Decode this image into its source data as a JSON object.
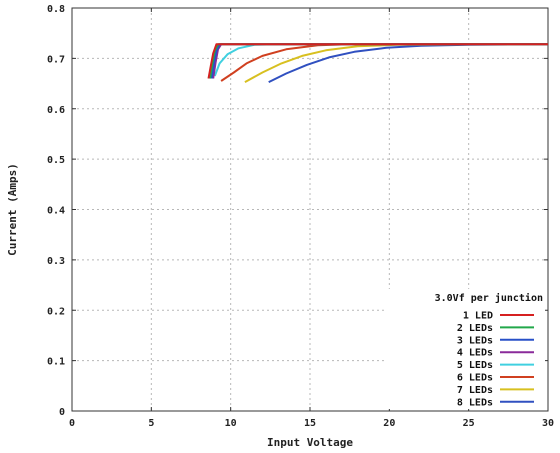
{
  "chart_data": {
    "type": "line",
    "title": "",
    "xlabel": "Input Voltage",
    "ylabel": "Current (Amps)",
    "xlim": [
      0,
      30
    ],
    "ylim": [
      0,
      0.8
    ],
    "x_ticks": [
      "0",
      "5",
      "10",
      "15",
      "20",
      "25",
      "30"
    ],
    "y_ticks": [
      "0",
      "0.1",
      "0.2",
      "0.3",
      "0.4",
      "0.5",
      "0.6",
      "0.7",
      "0.8"
    ],
    "grid": true,
    "legend_title": "3.0Vf per junction",
    "legend_position": "bottom-right",
    "series": [
      {
        "name": "1 LED",
        "color": "#d62020",
        "points": [
          [
            8.6,
            0.66
          ],
          [
            8.75,
            0.685
          ],
          [
            8.9,
            0.71
          ],
          [
            9.1,
            0.728
          ],
          [
            30,
            0.728
          ]
        ]
      },
      {
        "name": "2 LEDs",
        "color": "#22a84a",
        "points": [
          [
            8.7,
            0.66
          ],
          [
            8.85,
            0.69
          ],
          [
            9.0,
            0.715
          ],
          [
            9.2,
            0.728
          ],
          [
            30,
            0.728
          ]
        ]
      },
      {
        "name": "3 LEDs",
        "color": "#2850c8",
        "points": [
          [
            8.8,
            0.66
          ],
          [
            8.95,
            0.69
          ],
          [
            9.1,
            0.715
          ],
          [
            9.3,
            0.728
          ],
          [
            30,
            0.728
          ]
        ]
      },
      {
        "name": "4 LEDs",
        "color": "#8a2a9a",
        "points": [
          [
            8.9,
            0.66
          ],
          [
            9.05,
            0.692
          ],
          [
            9.2,
            0.718
          ],
          [
            9.4,
            0.728
          ],
          [
            30,
            0.728
          ]
        ]
      },
      {
        "name": "5 LEDs",
        "color": "#40d0e0",
        "points": [
          [
            9.0,
            0.665
          ],
          [
            9.3,
            0.69
          ],
          [
            9.8,
            0.708
          ],
          [
            10.5,
            0.72
          ],
          [
            11.5,
            0.727
          ],
          [
            13,
            0.728
          ],
          [
            30,
            0.728
          ]
        ]
      },
      {
        "name": "6 LEDs",
        "color": "#d04020",
        "points": [
          [
            9.4,
            0.655
          ],
          [
            10.2,
            0.672
          ],
          [
            11,
            0.69
          ],
          [
            12,
            0.705
          ],
          [
            13.5,
            0.718
          ],
          [
            15.5,
            0.726
          ],
          [
            17.5,
            0.728
          ],
          [
            30,
            0.728
          ]
        ]
      },
      {
        "name": "7 LEDs",
        "color": "#d8c020",
        "points": [
          [
            10.9,
            0.653
          ],
          [
            12,
            0.672
          ],
          [
            13.2,
            0.69
          ],
          [
            14.5,
            0.705
          ],
          [
            16,
            0.716
          ],
          [
            18,
            0.724
          ],
          [
            20.5,
            0.727
          ],
          [
            30,
            0.728
          ]
        ]
      },
      {
        "name": "8 LEDs",
        "color": "#3050c0",
        "points": [
          [
            12.4,
            0.653
          ],
          [
            13.5,
            0.67
          ],
          [
            14.8,
            0.687
          ],
          [
            16.2,
            0.702
          ],
          [
            17.8,
            0.713
          ],
          [
            19.8,
            0.721
          ],
          [
            22,
            0.725
          ],
          [
            25,
            0.727
          ],
          [
            30,
            0.728
          ]
        ]
      }
    ]
  }
}
